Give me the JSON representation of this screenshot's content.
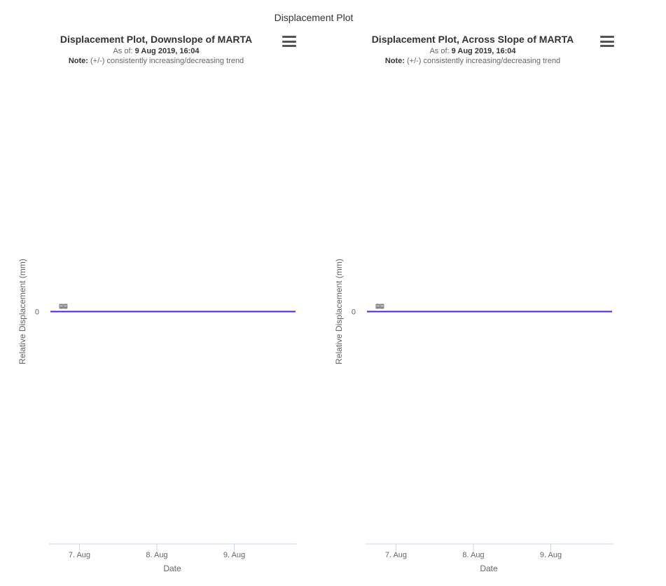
{
  "page": {
    "title": "Displacement Plot"
  },
  "charts": [
    {
      "title": "Displacement Plot, Downslope of MARTA",
      "as_of_label": "As of:",
      "as_of_value": "9 Aug 2019, 16:04",
      "note_label": "Note:",
      "note_text": "(+/-) consistently increasing/decreasing trend",
      "menu_icon": "hamburger-menu-icon"
    },
    {
      "title": "Displacement Plot, Across Slope of MARTA",
      "as_of_label": "As of:",
      "as_of_value": "9 Aug 2019, 16:04",
      "note_label": "Note:",
      "note_text": "(+/-) consistently increasing/decreasing trend",
      "menu_icon": "hamburger-menu-icon"
    }
  ],
  "chart_data": [
    {
      "type": "line",
      "title": "Displacement Plot, Downslope of MARTA",
      "xlabel": "Date",
      "ylabel": "Relative Displacement (mm)",
      "x_ticks": [
        "7. Aug",
        "8. Aug",
        "9. Aug"
      ],
      "y_ticks": [
        0
      ],
      "xlim": [
        "2019-08-06 15:00",
        "2019-08-09 19:00"
      ],
      "ylim": [
        -100,
        100
      ],
      "grid": false,
      "series": [
        {
          "color": "#5a1fd1",
          "x": [
            "2019-08-06 15:00",
            "2019-08-09 19:00"
          ],
          "y": [
            0,
            0
          ]
        }
      ],
      "annotations": [
        "",
        ""
      ],
      "annotation_x": "2019-08-06 19:00",
      "annotation_y": 0
    },
    {
      "type": "line",
      "title": "Displacement Plot, Across Slope of MARTA",
      "xlabel": "Date",
      "ylabel": "Relative Displacement (mm)",
      "x_ticks": [
        "7. Aug",
        "8. Aug",
        "9. Aug"
      ],
      "y_ticks": [
        0
      ],
      "xlim": [
        "2019-08-06 15:00",
        "2019-08-09 19:00"
      ],
      "ylim": [
        -100,
        100
      ],
      "grid": false,
      "series": [
        {
          "color": "#5a1fd1",
          "x": [
            "2019-08-06 15:00",
            "2019-08-09 19:00"
          ],
          "y": [
            0,
            0
          ]
        }
      ],
      "annotations": [
        "",
        ""
      ],
      "annotation_x": "2019-08-06 19:00",
      "annotation_y": 0
    }
  ]
}
